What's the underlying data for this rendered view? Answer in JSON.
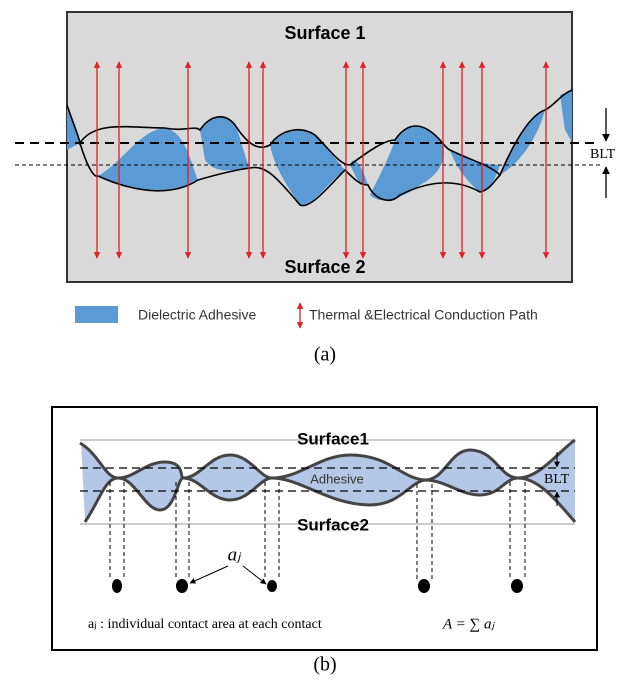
{
  "panel_a": {
    "surface_top": "Surface 1",
    "surface_bottom": "Surface 2",
    "blt": "BLT",
    "legend": [
      "Dielectric Adhesive",
      "Thermal &Electrical Conduction Path"
    ],
    "caption": "(a)"
  },
  "panel_b": {
    "surface_top": "Surface1",
    "surface_bottom": "Surface2",
    "adhesive": "Adhesive",
    "blt": "BLT",
    "contact_label": "aⱼ",
    "note": "aⱼ : individual contact area at each contact",
    "formula": "A = ∑ aⱼ",
    "caption": "(b)"
  }
}
